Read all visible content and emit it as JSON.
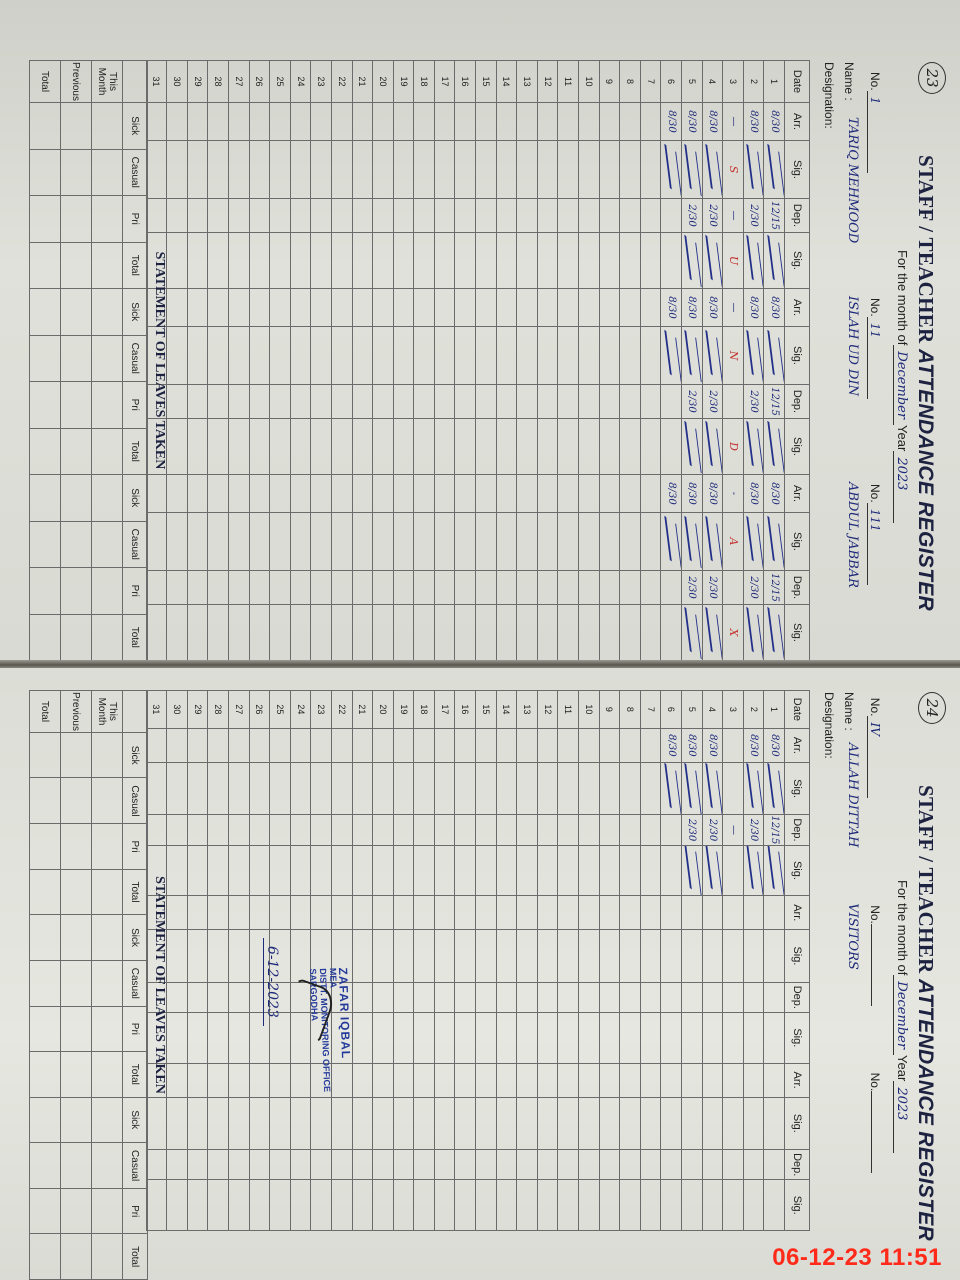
{
  "timestamp": "06-12-23 11:51",
  "colors": {
    "ink_blue": "#1e2a7a",
    "ink_red": "#c3302c",
    "timestamp_red": "#ff2a1a",
    "title": "#1d2240"
  },
  "labels": {
    "title_a": "STAFF / TEACHER ",
    "title_b": "ATTENDANCE REGISTER",
    "month_label": "For the month of",
    "year_label": "Year",
    "no_label": "No.",
    "name_label": "Name :",
    "designation_label": "Designation:",
    "columns": [
      "Date",
      "Arr.",
      "Sig.",
      "Dep.",
      "Sig."
    ],
    "leaves_title": "STATEMENT OF LEAVES TAKEN",
    "leave_columns": [
      "Sick",
      "Casual",
      "Pri",
      "Total"
    ],
    "leave_rows": [
      "This Month",
      "Previous",
      "Total"
    ]
  },
  "pages": [
    {
      "page_no": "23",
      "month": "December",
      "year": "2023",
      "staff": [
        {
          "no": "1",
          "name": "TARIQ MEHMOOD",
          "entries": [
            {
              "date": 1,
              "arr": "8/30",
              "sig1": true,
              "dep": "12/15",
              "sig2": true
            },
            {
              "date": 2,
              "arr": "8/30",
              "sig1": true,
              "dep": "2/30",
              "sig2": true
            },
            {
              "date": 3,
              "arr": "—",
              "mark1": "S",
              "dep": "—",
              "mark2": "U"
            },
            {
              "date": 4,
              "arr": "8/30",
              "sig1": true,
              "dep": "2/30",
              "sig2": true
            },
            {
              "date": 5,
              "arr": "8/30",
              "sig1": true,
              "dep": "2/30",
              "sig2": true
            },
            {
              "date": 6,
              "arr": "8/30",
              "sig1": true
            }
          ]
        },
        {
          "no": "11",
          "name": "ISLAH UD DIN",
          "entries": [
            {
              "date": 1,
              "arr": "8/30",
              "sig1": true,
              "dep": "12/15",
              "sig2": true
            },
            {
              "date": 2,
              "arr": "8/30",
              "sig1": true,
              "dep": "2/30",
              "sig2": true
            },
            {
              "date": 3,
              "arr": "—",
              "mark1": "N",
              "mark2": "D"
            },
            {
              "date": 4,
              "arr": "8/30",
              "sig1": true,
              "dep": "2/30",
              "sig2": true
            },
            {
              "date": 5,
              "arr": "8/30",
              "sig1": true,
              "dep": "2/30",
              "sig2": true
            },
            {
              "date": 6,
              "arr": "8/30",
              "sig1": true
            }
          ]
        },
        {
          "no": "111",
          "name": "ABDUL JABBAR",
          "entries": [
            {
              "date": 1,
              "arr": "8/30",
              "sig1": true,
              "dep": "12/15",
              "sig2": true
            },
            {
              "date": 2,
              "arr": "8/30",
              "sig1": true,
              "dep": "2/30",
              "sig2": true
            },
            {
              "date": 3,
              "arr": "-",
              "mark1": "A",
              "mark2": "X"
            },
            {
              "date": 4,
              "arr": "8/30",
              "sig1": true,
              "dep": "2/30",
              "sig2": true
            },
            {
              "date": 5,
              "arr": "8/30",
              "sig1": true,
              "dep": "2/30",
              "sig2": true
            },
            {
              "date": 6,
              "arr": "8/30",
              "sig1": true
            }
          ]
        }
      ]
    },
    {
      "page_no": "24",
      "month": "December",
      "year": "2023",
      "staff": [
        {
          "no": "IV",
          "name": "ALLAH DITTAH",
          "entries": [
            {
              "date": 1,
              "arr": "8/30",
              "sig1": true,
              "dep": "12/15",
              "sig2": true
            },
            {
              "date": 2,
              "arr": "8/30",
              "sig1": true,
              "dep": "2/30",
              "sig2": true
            },
            {
              "date": 3,
              "dep": "—"
            },
            {
              "date": 4,
              "arr": "8/30",
              "sig1": true,
              "dep": "2/30",
              "sig2": true
            },
            {
              "date": 5,
              "arr": "8/30",
              "sig1": true,
              "dep": "2/30",
              "sig2": true
            },
            {
              "date": 6,
              "arr": "8/30",
              "sig1": true
            }
          ]
        },
        {
          "no": "",
          "name": "VISITORS",
          "entries": []
        },
        {
          "no": "",
          "name": "",
          "entries": []
        }
      ],
      "stamp": {
        "lines": [
          "ZAFAR IQBAL",
          "MEA",
          "DISTT. MONITORING OFFICE",
          "SARGODHA"
        ],
        "date": "6-12-2023"
      }
    }
  ]
}
